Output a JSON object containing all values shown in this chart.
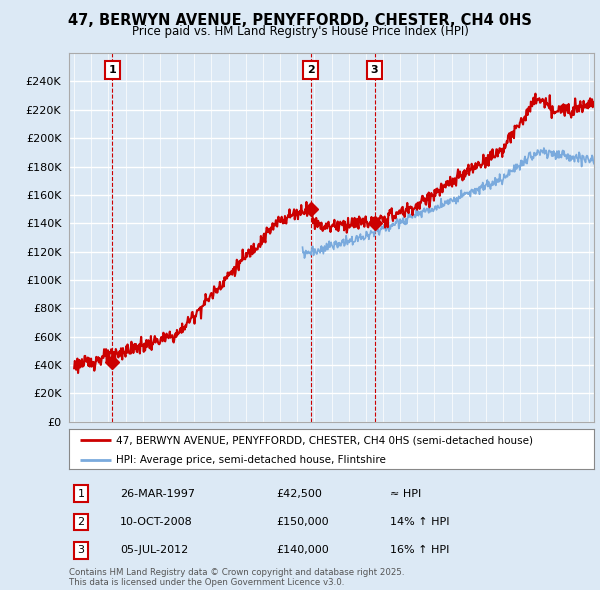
{
  "title": "47, BERWYN AVENUE, PENYFFORDD, CHESTER, CH4 0HS",
  "subtitle": "Price paid vs. HM Land Registry's House Price Index (HPI)",
  "ylim": [
    0,
    260000
  ],
  "yticks": [
    0,
    20000,
    40000,
    60000,
    80000,
    100000,
    120000,
    140000,
    160000,
    180000,
    200000,
    220000,
    240000
  ],
  "xlim": [
    1994.7,
    2025.3
  ],
  "bg_color": "#dce9f5",
  "plot_bg": "#dce9f5",
  "grid_color": "#ffffff",
  "vline_color": "#cc0000",
  "sale_color": "#cc0000",
  "hpi_color": "#7aaadd",
  "legend_entries": [
    "47, BERWYN AVENUE, PENYFFORDD, CHESTER, CH4 0HS (semi-detached house)",
    "HPI: Average price, semi-detached house, Flintshire"
  ],
  "sales": [
    {
      "date_num": 1997.23,
      "price": 42500,
      "label": "1"
    },
    {
      "date_num": 2008.78,
      "price": 150000,
      "label": "2"
    },
    {
      "date_num": 2012.51,
      "price": 140000,
      "label": "3"
    }
  ],
  "label_box_color": "#cc0000",
  "table_rows": [
    {
      "num": "1",
      "date": "26-MAR-1997",
      "price": "£42,500",
      "hpi": "≈ HPI"
    },
    {
      "num": "2",
      "date": "10-OCT-2008",
      "price": "£150,000",
      "hpi": "14% ↑ HPI"
    },
    {
      "num": "3",
      "date": "05-JUL-2012",
      "price": "£140,000",
      "hpi": "16% ↑ HPI"
    }
  ],
  "footer": "Contains HM Land Registry data © Crown copyright and database right 2025.\nThis data is licensed under the Open Government Licence v3.0."
}
